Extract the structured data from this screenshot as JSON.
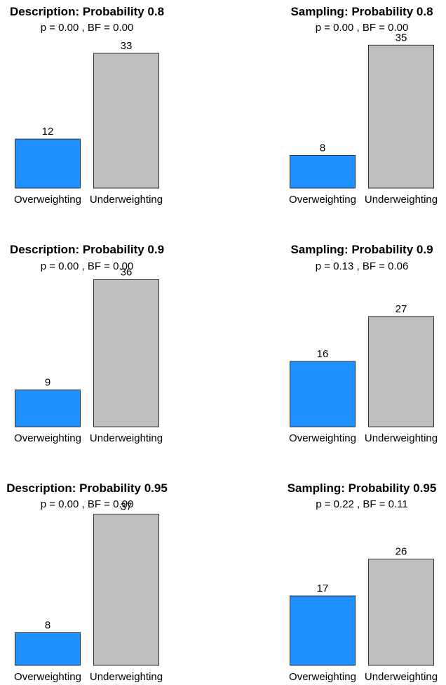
{
  "colors": {
    "overweighting": "#1e90ff",
    "underweighting": "#bebebe",
    "stroke": "#333333"
  },
  "chart_data": [
    {
      "type": "bar",
      "title": "Description: Probability 0.8",
      "subtitle": "p =  0.00 , BF =  0.00",
      "categories": [
        "Overweighting",
        "Underweighting"
      ],
      "values": [
        12,
        33
      ],
      "ylim": [
        0,
        40
      ]
    },
    {
      "type": "bar",
      "title": "Sampling: Probability 0.8",
      "subtitle": "p =  0.00 , BF =  0.00",
      "categories": [
        "Overweighting",
        "Underweighting"
      ],
      "values": [
        8,
        35
      ],
      "ylim": [
        0,
        40
      ]
    },
    {
      "type": "bar",
      "title": "Description: Probability 0.9",
      "subtitle": "p =  0.00 , BF =  0.00",
      "categories": [
        "Overweighting",
        "Underweighting"
      ],
      "values": [
        9,
        36
      ],
      "ylim": [
        0,
        40
      ]
    },
    {
      "type": "bar",
      "title": "Sampling: Probability 0.9",
      "subtitle": "p =  0.13 , BF =  0.06",
      "categories": [
        "Overweighting",
        "Underweighting"
      ],
      "values": [
        16,
        27
      ],
      "ylim": [
        0,
        40
      ]
    },
    {
      "type": "bar",
      "title": "Description: Probability 0.95",
      "subtitle": "p =  0.00 , BF =  0.00",
      "categories": [
        "Overweighting",
        "Underweighting"
      ],
      "values": [
        8,
        37
      ],
      "ylim": [
        0,
        40
      ]
    },
    {
      "type": "bar",
      "title": "Sampling: Probability 0.95",
      "subtitle": "p =  0.22 , BF =  0.11",
      "categories": [
        "Overweighting",
        "Underweighting"
      ],
      "values": [
        17,
        26
      ],
      "ylim": [
        0,
        40
      ]
    }
  ]
}
